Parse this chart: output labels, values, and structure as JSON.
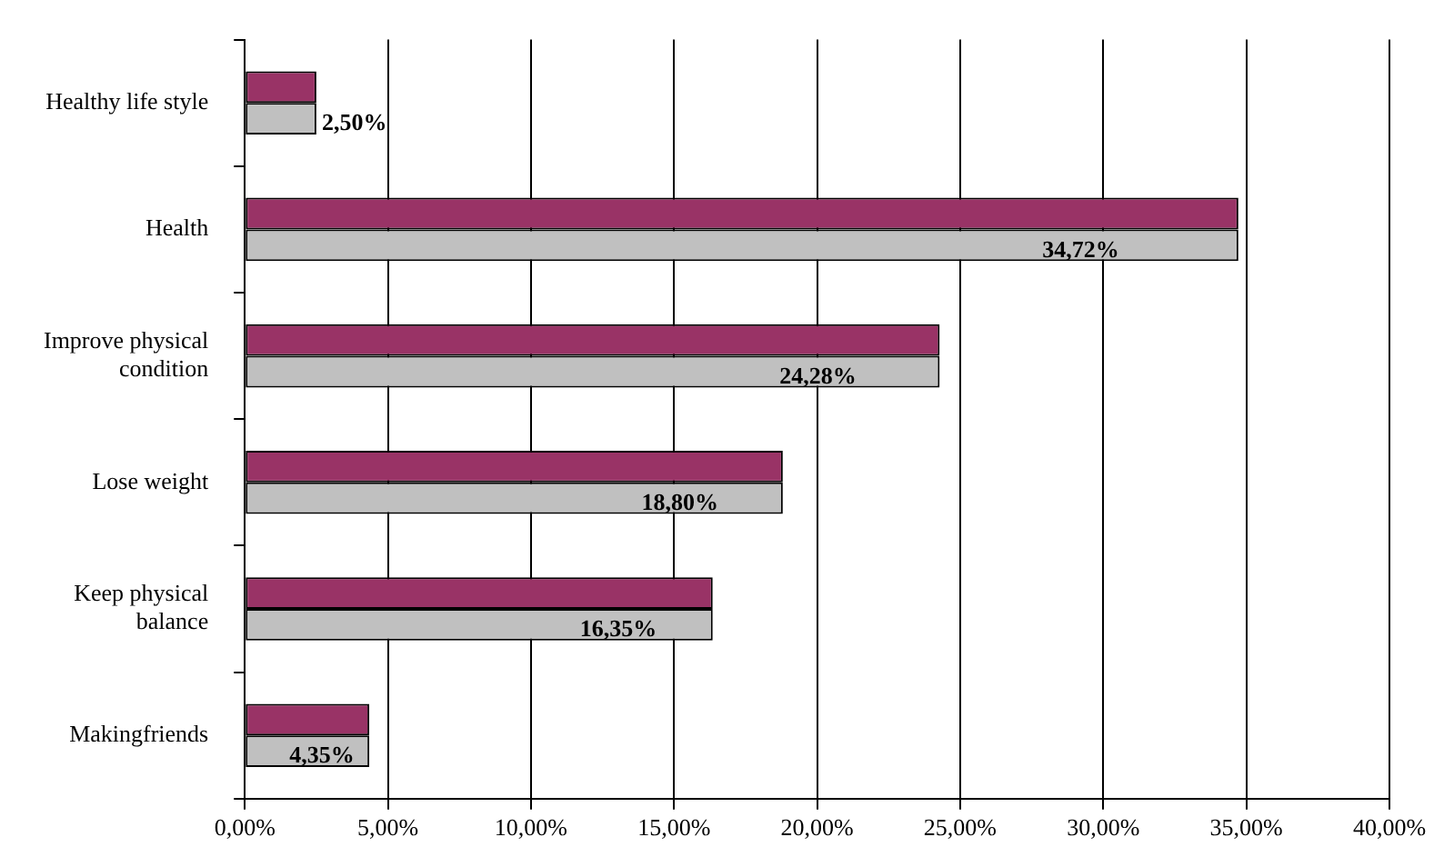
{
  "chart_data": {
    "type": "bar",
    "orientation": "horizontal",
    "categories": [
      "Healthy life style",
      "Health",
      "Improve physical condition",
      "Lose weight",
      "Keep physical balance",
      "Makingfriends"
    ],
    "series": [
      {
        "color": "#993366",
        "values": [
          2.5,
          34.72,
          24.28,
          18.8,
          16.35,
          4.35
        ]
      },
      {
        "color": "#c0c0c0",
        "values": [
          2.5,
          34.72,
          24.28,
          18.8,
          16.35,
          4.35
        ],
        "value_labels": [
          "2,50%",
          "34,72%",
          "24,28%",
          "18,80%",
          "16,35%",
          "4,35%"
        ]
      }
    ],
    "xlim": [
      0,
      40
    ],
    "xticks": [
      {
        "value": 0,
        "label": "0,00%"
      },
      {
        "value": 5,
        "label": "5,00%"
      },
      {
        "value": 10,
        "label": "10,00%"
      },
      {
        "value": 15,
        "label": "15,00%"
      },
      {
        "value": 20,
        "label": "20,00%"
      },
      {
        "value": 25,
        "label": "25,00%"
      },
      {
        "value": 30,
        "label": "30,00%"
      },
      {
        "value": 35,
        "label": "35,00%"
      },
      {
        "value": 40,
        "label": "40,00%"
      }
    ],
    "grid": "x",
    "legend": false
  }
}
